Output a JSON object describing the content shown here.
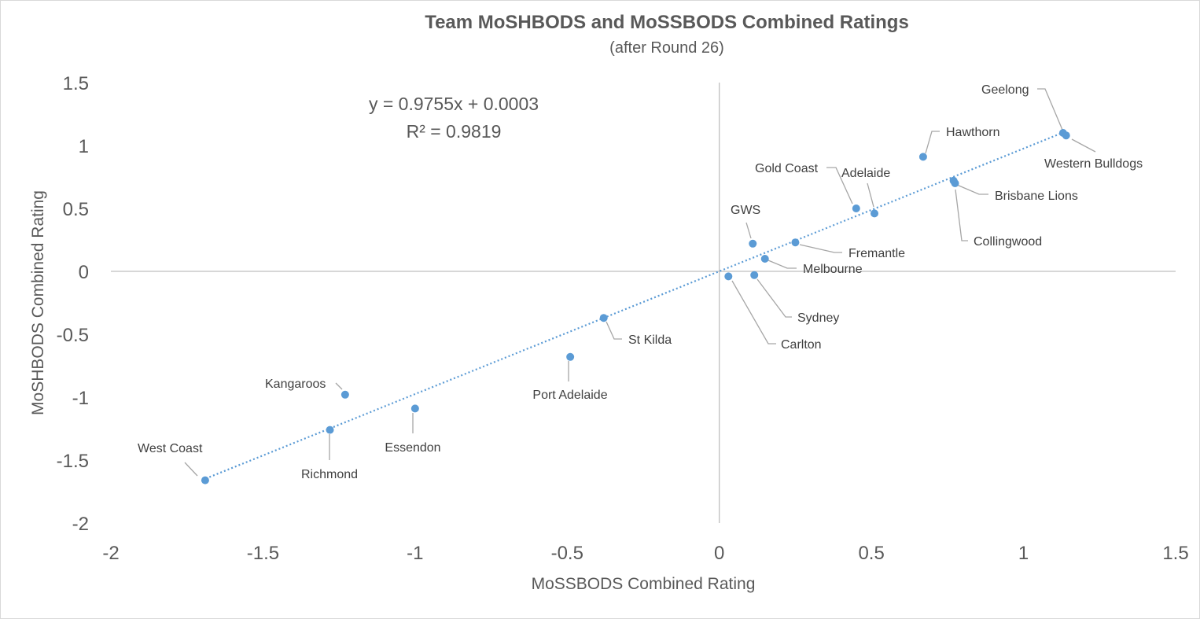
{
  "chart_data": {
    "type": "scatter",
    "title": "Team MoSHBODS and MoSSBODS Combined Ratings",
    "subtitle": "(after Round 26)",
    "xlabel": "MoSSBODS Combined Rating",
    "ylabel": "MoSHBODS Combined Rating",
    "xlim": [
      -2,
      1.5
    ],
    "ylim": [
      -2,
      1.5
    ],
    "xticks": [
      "-2",
      "-1.5",
      "-1",
      "-0.5",
      "0",
      "0.5",
      "1",
      "1.5"
    ],
    "yticks": [
      "1.5",
      "1",
      "0.5",
      "0",
      "-0.5",
      "-1",
      "-1.5",
      "-2"
    ],
    "xtick_values": [
      -2,
      -1.5,
      -1,
      -0.5,
      0,
      0.5,
      1,
      1.5
    ],
    "ytick_values": [
      1.5,
      1,
      0.5,
      0,
      -0.5,
      -1,
      -1.5,
      -2
    ],
    "trendline": {
      "slope": 0.9755,
      "intercept": 0.0003,
      "x_range": [
        -1.7,
        1.14
      ]
    },
    "equation_text": "y = 0.9755x + 0.0003",
    "r2_text": "R² = 0.9819",
    "color": "#5b9bd5",
    "points": [
      {
        "team": "Geelong",
        "x": 1.13,
        "y": 1.1
      },
      {
        "team": "Western Bulldogs",
        "x": 1.14,
        "y": 1.08
      },
      {
        "team": "Hawthorn",
        "x": 0.67,
        "y": 0.91
      },
      {
        "team": "Brisbane Lions",
        "x": 0.77,
        "y": 0.72
      },
      {
        "team": "Collingwood",
        "x": 0.775,
        "y": 0.7
      },
      {
        "team": "Gold Coast",
        "x": 0.45,
        "y": 0.5
      },
      {
        "team": "Adelaide",
        "x": 0.51,
        "y": 0.46
      },
      {
        "team": "GWS",
        "x": 0.11,
        "y": 0.22
      },
      {
        "team": "Fremantle",
        "x": 0.25,
        "y": 0.23
      },
      {
        "team": "Melbourne",
        "x": 0.15,
        "y": 0.1
      },
      {
        "team": "Sydney",
        "x": 0.115,
        "y": -0.03
      },
      {
        "team": "Carlton",
        "x": 0.03,
        "y": -0.04
      },
      {
        "team": "St Kilda",
        "x": -0.38,
        "y": -0.37
      },
      {
        "team": "Port Adelaide",
        "x": -0.49,
        "y": -0.68
      },
      {
        "team": "Kangaroos",
        "x": -1.23,
        "y": -0.98
      },
      {
        "team": "Essendon",
        "x": -1.0,
        "y": -1.09
      },
      {
        "team": "Richmond",
        "x": -1.28,
        "y": -1.26
      },
      {
        "team": "West Coast",
        "x": -1.69,
        "y": -1.66
      }
    ]
  }
}
